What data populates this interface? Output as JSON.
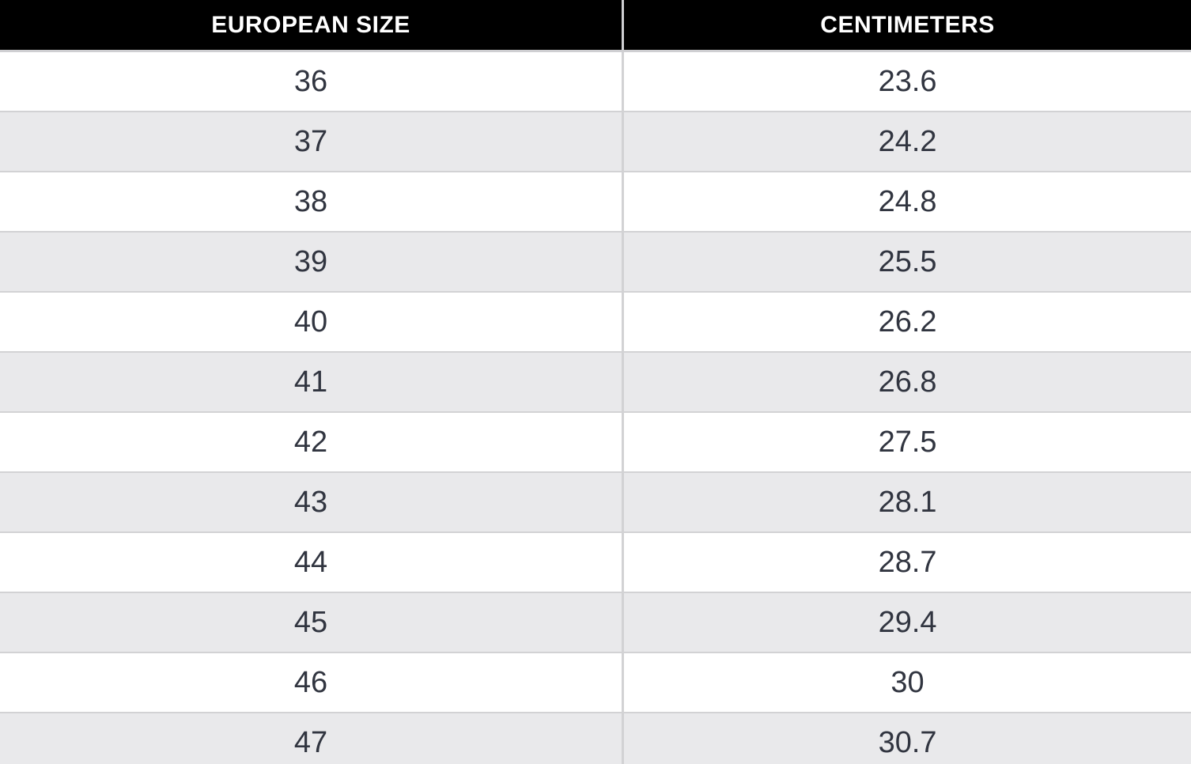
{
  "chart_data": {
    "type": "table",
    "columns": [
      "EUROPEAN SIZE",
      "CENTIMETERS"
    ],
    "categories": [
      36,
      37,
      38,
      39,
      40,
      41,
      42,
      43,
      44,
      45,
      46,
      47
    ],
    "values": [
      23.6,
      24.2,
      24.8,
      25.5,
      26.2,
      26.8,
      27.5,
      28.1,
      28.7,
      29.4,
      30,
      30.7
    ],
    "rows": [
      [
        "36",
        "23.6"
      ],
      [
        "37",
        "24.2"
      ],
      [
        "38",
        "24.8"
      ],
      [
        "39",
        "25.5"
      ],
      [
        "40",
        "26.2"
      ],
      [
        "41",
        "26.8"
      ],
      [
        "42",
        "27.5"
      ],
      [
        "43",
        "28.1"
      ],
      [
        "44",
        "28.7"
      ],
      [
        "45",
        "29.4"
      ],
      [
        "46",
        "30"
      ],
      [
        "47",
        "30.7"
      ]
    ],
    "layout": {
      "striped": true,
      "last_row_clipped": true
    }
  },
  "style": {
    "header_bg": "#000000",
    "header_text": "#ffffff",
    "row_bg": "#ffffff",
    "row_alt_bg": "#e9e9eb",
    "border_color": "#d2d2d4",
    "body_text": "#313540"
  }
}
